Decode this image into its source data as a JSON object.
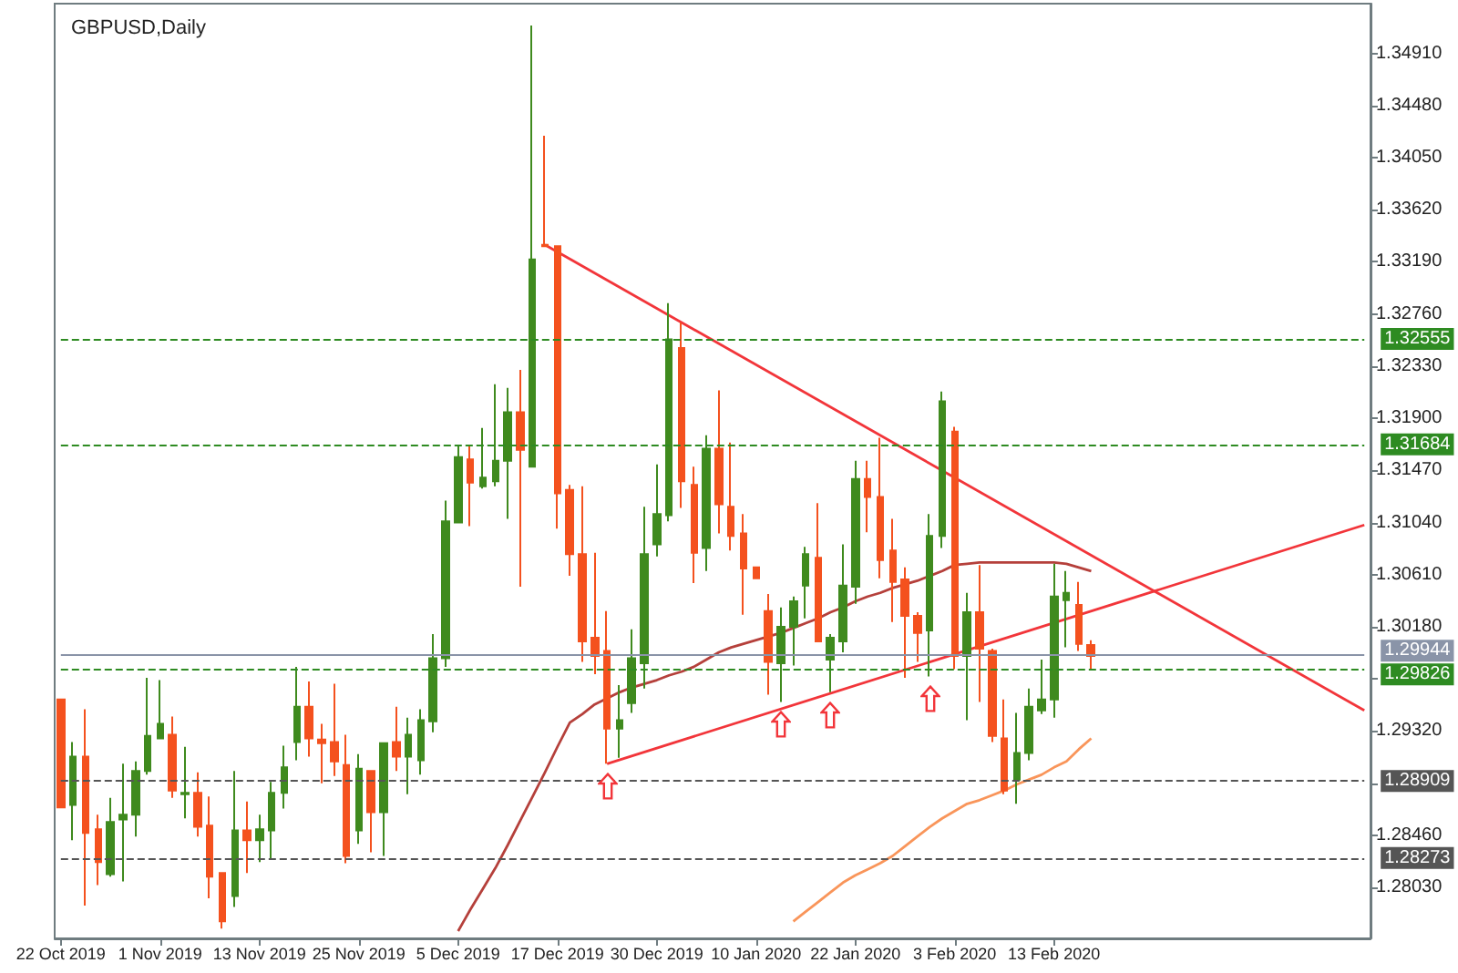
{
  "chart_data": {
    "type": "candlestick",
    "title": "GBPUSD,Daily",
    "categories": [
      "22 Oct 2019",
      null,
      null,
      null,
      null,
      null,
      null,
      null,
      "1 Nov 2019",
      null,
      null,
      null,
      null,
      null,
      null,
      null,
      "13 Nov 2019",
      null,
      null,
      null,
      null,
      null,
      null,
      null,
      "25 Nov 2019",
      null,
      null,
      null,
      null,
      null,
      null,
      null,
      "5 Dec 2019",
      null,
      null,
      null,
      null,
      null,
      null,
      null,
      "17 Dec 2019",
      null,
      null,
      null,
      null,
      null,
      null,
      null,
      "30 Dec 2019",
      null,
      null,
      null,
      null,
      null,
      null,
      null,
      "10 Jan 2020",
      null,
      null,
      null,
      null,
      null,
      null,
      null,
      "22 Jan 2020",
      null,
      null,
      null,
      null,
      null,
      null,
      null,
      "3 Feb 2020",
      null,
      null,
      null,
      null,
      null,
      null,
      null,
      "13 Feb 2020",
      null,
      null,
      null,
      null,
      null,
      null,
      null,
      null,
      null,
      null,
      null,
      null,
      null,
      null,
      null,
      null,
      null,
      null,
      null,
      null,
      null,
      null,
      null,
      null,
      null
    ],
    "colors": [
      "#f4511e",
      "#3f8a1e",
      "#f4511e",
      "#f4511e",
      "#3f8a1e",
      "#3f8a1e",
      "#3f8a1e",
      "#3f8a1e",
      "#3f8a1e",
      "#f4511e",
      "#3f8a1e",
      "#f4511e",
      "#f4511e",
      "#f4511e",
      "#3f8a1e",
      "#f4511e",
      "#3f8a1e",
      "#3f8a1e",
      "#3f8a1e",
      "#3f8a1e",
      "#f4511e",
      "#f4511e",
      "#f4511e",
      "#f4511e",
      "#3f8a1e",
      "#f4511e",
      "#3f8a1e",
      "#f4511e",
      "#3f8a1e",
      "#3f8a1e",
      "#3f8a1e",
      "#3f8a1e",
      "#3f8a1e",
      "#f4511e",
      "#3f8a1e",
      "#3f8a1e",
      "#3f8a1e",
      "#f4511e",
      "#3f8a1e",
      "#f4511e",
      "#f4511e",
      "#f4511e",
      "#f4511e",
      "#f4511e",
      "#f4511e",
      "#3f8a1e",
      "#3f8a1e",
      "#3f8a1e",
      "#3f8a1e",
      "#3f8a1e",
      "#f4511e",
      "#f4511e",
      "#3f8a1e",
      "#f4511e",
      "#f4511e",
      "#f4511e",
      "#f4511e",
      "#f4511e",
      "#3f8a1e",
      "#3f8a1e",
      "#3f8a1e",
      "#f4511e",
      "#3f8a1e",
      "#3f8a1e",
      "#3f8a1e",
      "#f4511e",
      "#f4511e",
      "#f4511e",
      "#f4511e",
      "#f4511e",
      "#3f8a1e",
      "#3f8a1e",
      "#f4511e",
      "#3f8a1e",
      "#f4511e",
      "#f4511e",
      "#f4511e",
      "#3f8a1e",
      "#3f8a1e",
      "#3f8a1e",
      "#3f8a1e",
      "#3f8a1e",
      "#f4511e",
      "#f4511e",
      null,
      null,
      null,
      null,
      null,
      null,
      null,
      null,
      null,
      null,
      null,
      null,
      null,
      null,
      null,
      null,
      null,
      null,
      null,
      null,
      null,
      null
    ],
    "ohlc": [
      [
        1.2958,
        1.2958,
        1.2869,
        1.2869
      ],
      [
        1.2871,
        1.2923,
        1.2842,
        1.2911
      ],
      [
        1.2911,
        1.295,
        1.2788,
        1.2848
      ],
      [
        1.2851,
        1.2863,
        1.2805,
        1.2824
      ],
      [
        1.2814,
        1.2877,
        1.2812,
        1.2857
      ],
      [
        1.2859,
        1.2905,
        1.2808,
        1.2863
      ],
      [
        1.2863,
        1.2907,
        1.2845,
        1.2899
      ],
      [
        1.2899,
        1.2976,
        1.2896,
        1.2928
      ],
      [
        1.2926,
        1.2974,
        1.2926,
        1.2938
      ],
      [
        1.2929,
        1.2944,
        1.2877,
        1.2883
      ],
      [
        1.288,
        1.2919,
        1.286,
        1.2881
      ],
      [
        1.2881,
        1.2898,
        1.2845,
        1.2853
      ],
      [
        1.2854,
        1.2878,
        1.2794,
        1.2812
      ],
      [
        1.2815,
        1.2815,
        1.2769,
        1.2775
      ],
      [
        1.2796,
        1.2899,
        1.2787,
        1.285
      ],
      [
        1.285,
        1.2874,
        1.2815,
        1.2842
      ],
      [
        1.2842,
        1.2863,
        1.2824,
        1.2851
      ],
      [
        1.285,
        1.289,
        1.2826,
        1.2881
      ],
      [
        1.2881,
        1.292,
        1.2868,
        1.2902
      ],
      [
        1.2923,
        1.2985,
        1.2908,
        1.2952
      ],
      [
        1.2952,
        1.2973,
        1.2911,
        1.2926
      ],
      [
        1.2925,
        1.2938,
        1.2889,
        1.2922
      ],
      [
        1.2923,
        1.2971,
        1.2895,
        1.2907
      ],
      [
        1.2904,
        1.2929,
        1.2823,
        1.2829
      ],
      [
        1.285,
        1.2913,
        1.2839,
        1.2901
      ],
      [
        1.2899,
        1.2899,
        1.2832,
        1.2865
      ],
      [
        1.2865,
        1.2922,
        1.2829,
        1.2922
      ],
      [
        1.2923,
        1.2952,
        1.2899,
        1.2911
      ],
      [
        1.2911,
        1.2943,
        1.288,
        1.2929
      ],
      [
        1.2908,
        1.295,
        1.2896,
        1.2941
      ],
      [
        1.294,
        1.3012,
        1.2931,
        1.2992
      ],
      [
        1.2992,
        1.3122,
        1.2985,
        1.3105
      ],
      [
        1.3104,
        1.3167,
        1.3104,
        1.3158
      ],
      [
        1.3156,
        1.3167,
        1.3101,
        1.3137
      ],
      [
        1.3134,
        1.3182,
        1.3132,
        1.3141
      ],
      [
        1.3138,
        1.3218,
        1.3134,
        1.3155
      ],
      [
        1.3155,
        1.3215,
        1.3107,
        1.3195
      ],
      [
        1.3195,
        1.323,
        1.3051,
        1.3164
      ],
      [
        1.315,
        1.3514,
        1.315,
        1.3321
      ],
      [
        1.3333,
        1.3423,
        1.3332,
        1.3332
      ],
      [
        1.3332,
        1.3332,
        1.3099,
        1.3128
      ],
      [
        1.3131,
        1.3135,
        1.306,
        1.3078
      ],
      [
        1.3078,
        1.3134,
        1.2989,
        1.3006
      ],
      [
        1.3009,
        1.3079,
        1.2979,
        1.2994
      ],
      [
        1.2998,
        1.3031,
        1.2905,
        1.2934
      ],
      [
        1.2934,
        1.297,
        1.291,
        1.2941
      ],
      [
        1.2955,
        1.3016,
        1.2947,
        1.2992
      ],
      [
        1.2988,
        1.3117,
        1.2967,
        1.3078
      ],
      [
        1.3086,
        1.3152,
        1.3076,
        1.3111
      ],
      [
        1.311,
        1.3285,
        1.3105,
        1.3255
      ],
      [
        1.3248,
        1.3269,
        1.3116,
        1.3138
      ],
      [
        1.3135,
        1.315,
        1.3054,
        1.3079
      ],
      [
        1.3083,
        1.3176,
        1.3064,
        1.3165
      ],
      [
        1.3165,
        1.3213,
        1.3095,
        1.3119
      ],
      [
        1.3117,
        1.317,
        1.3081,
        1.3093
      ],
      [
        1.3095,
        1.3111,
        1.3028,
        1.3066
      ],
      [
        1.3067,
        1.3067,
        1.3058,
        1.3058
      ],
      [
        1.3031,
        1.3045,
        1.2962,
        1.2989
      ],
      [
        1.2988,
        1.3034,
        1.2956,
        1.3018
      ],
      [
        1.3018,
        1.3043,
        1.2986,
        1.3039
      ],
      [
        1.3052,
        1.3084,
        1.3025,
        1.3078
      ],
      [
        1.3075,
        1.312,
        1.3006,
        1.3006
      ],
      [
        1.2991,
        1.3012,
        1.2964,
        1.3009
      ],
      [
        1.3006,
        1.3086,
        1.2997,
        1.3052
      ],
      [
        1.3051,
        1.3155,
        1.3037,
        1.314
      ],
      [
        1.314,
        1.3155,
        1.3096,
        1.3125
      ],
      [
        1.3125,
        1.3174,
        1.3058,
        1.3073
      ],
      [
        1.3081,
        1.3107,
        1.3022,
        1.3055
      ],
      [
        1.3057,
        1.3067,
        1.2976,
        1.3027
      ],
      [
        1.3027,
        1.303,
        1.2989,
        1.3013
      ],
      [
        1.3015,
        1.3111,
        1.2977,
        1.3093
      ],
      [
        1.3093,
        1.3212,
        1.3083,
        1.3204
      ],
      [
        1.3179,
        1.3183,
        1.2983,
        1.2994
      ],
      [
        1.2994,
        1.3046,
        1.2941,
        1.303
      ],
      [
        1.303,
        1.3069,
        1.2956,
        1.3
      ],
      [
        1.2998,
        1.3,
        1.2923,
        1.2928
      ],
      [
        1.2926,
        1.2958,
        1.288,
        1.2883
      ],
      [
        1.2892,
        1.2947,
        1.2872,
        1.2914
      ],
      [
        1.2914,
        1.2967,
        1.2908,
        1.2952
      ],
      [
        1.2949,
        1.2991,
        1.2946,
        1.2958
      ],
      [
        1.2958,
        1.307,
        1.2943,
        1.3043
      ],
      [
        1.304,
        1.3064,
        1.3001,
        1.3046
      ],
      [
        1.3036,
        1.3055,
        1.2998,
        1.3004
      ],
      [
        1.3003,
        1.3007,
        1.2983,
        1.2994
      ],
      null,
      null,
      null,
      null,
      null,
      null,
      null,
      null,
      null,
      null,
      null,
      null,
      null,
      null,
      null,
      null,
      null,
      null,
      null,
      null,
      null,
      null
    ],
    "series": [
      {
        "type": "line",
        "color": "#b5403b",
        "values": [
          null,
          null,
          null,
          null,
          null,
          null,
          null,
          null,
          null,
          null,
          null,
          null,
          null,
          null,
          null,
          null,
          null,
          null,
          null,
          null,
          null,
          null,
          null,
          null,
          null,
          null,
          null,
          null,
          null,
          null,
          null,
          null,
          1.2767,
          1.2785,
          1.2802,
          1.2819,
          1.2838,
          1.2858,
          1.2878,
          1.2898,
          1.2919,
          1.2939,
          1.2946,
          1.2954,
          1.2959,
          1.2964,
          1.2968,
          1.2971,
          1.2974,
          1.2978,
          1.2981,
          1.2985,
          1.2991,
          1.2997,
          1.3001,
          1.3004,
          1.3007,
          1.301,
          1.3013,
          1.3017,
          1.3021,
          1.3025,
          1.303,
          1.3034,
          1.3039,
          1.3043,
          1.3046,
          1.305,
          1.3053,
          1.3056,
          1.306,
          1.3064,
          1.3069,
          1.307,
          1.3071,
          1.3071,
          1.3071,
          1.3071,
          1.3071,
          1.3071,
          1.3071,
          1.307,
          1.3067,
          1.3064,
          null,
          null,
          null,
          null,
          null,
          null,
          null,
          null,
          null,
          null,
          null,
          null,
          null,
          null,
          null,
          null,
          null,
          null,
          null,
          null,
          null,
          null
        ]
      },
      {
        "type": "line",
        "color": "#f9955a",
        "values": [
          null,
          null,
          null,
          null,
          null,
          null,
          null,
          null,
          null,
          null,
          null,
          null,
          null,
          null,
          null,
          null,
          null,
          null,
          null,
          null,
          null,
          null,
          null,
          null,
          null,
          null,
          null,
          null,
          null,
          null,
          null,
          null,
          null,
          null,
          null,
          null,
          null,
          null,
          null,
          null,
          null,
          null,
          null,
          null,
          null,
          null,
          null,
          null,
          null,
          null,
          null,
          null,
          null,
          null,
          null,
          null,
          null,
          null,
          null,
          1.2775,
          1.2783,
          1.2791,
          1.2799,
          1.2807,
          1.2813,
          1.2818,
          1.2823,
          1.2829,
          1.2837,
          1.2845,
          1.2853,
          1.286,
          1.2866,
          1.2872,
          1.2875,
          1.2879,
          1.2883,
          1.2888,
          1.2892,
          1.2896,
          1.2902,
          1.2907,
          1.2917,
          1.2926,
          null,
          null,
          null,
          null,
          null,
          null,
          null,
          null,
          null,
          null,
          null,
          null,
          null,
          null,
          null,
          null,
          null,
          null,
          null,
          null,
          null,
          null
        ]
      },
      {
        "type": "line",
        "color": "#f2353a",
        "values": [
          null,
          null,
          null,
          null,
          null,
          null,
          null,
          null,
          null,
          null,
          null,
          null,
          null,
          null,
          null,
          null,
          null,
          null,
          null,
          null,
          null,
          null,
          null,
          null,
          null,
          null,
          null,
          null,
          null,
          null,
          null,
          null,
          null,
          null,
          null,
          null,
          null,
          null,
          null,
          1.3333,
          null,
          null,
          null,
          null,
          null,
          null,
          null,
          null,
          null,
          null,
          null,
          null,
          null,
          null,
          null,
          null,
          null,
          null,
          null,
          null,
          null,
          null,
          null,
          null,
          null,
          null,
          null,
          null,
          null,
          null,
          null,
          null,
          null,
          null,
          null,
          null,
          null,
          null,
          null,
          null,
          null,
          null,
          null,
          null,
          null,
          null,
          null,
          null,
          null,
          null,
          null,
          null,
          null,
          null,
          null,
          null,
          null,
          null,
          null,
          null,
          null,
          null,
          null,
          null,
          null,
          1.2949
        ]
      },
      {
        "type": "line",
        "color": "#f2353a",
        "values": [
          null,
          null,
          null,
          null,
          null,
          null,
          null,
          null,
          null,
          null,
          null,
          null,
          null,
          null,
          null,
          null,
          null,
          null,
          null,
          null,
          null,
          null,
          null,
          null,
          null,
          null,
          null,
          null,
          null,
          null,
          null,
          null,
          null,
          null,
          null,
          null,
          null,
          null,
          null,
          null,
          null,
          null,
          null,
          null,
          1.2905,
          null,
          null,
          null,
          null,
          null,
          null,
          null,
          null,
          null,
          null,
          null,
          null,
          null,
          null,
          null,
          null,
          null,
          null,
          null,
          null,
          null,
          null,
          null,
          null,
          null,
          null,
          null,
          null,
          null,
          null,
          null,
          null,
          null,
          null,
          null,
          null,
          null,
          null,
          null,
          null,
          null,
          null,
          null,
          null,
          null,
          null,
          null,
          null,
          null,
          null,
          null,
          null,
          null,
          null,
          null,
          null,
          null,
          null,
          null,
          null,
          1.3102
        ]
      }
    ],
    "ylim": [
      1.2761,
      1.3532
    ],
    "yticks": [
      {
        "value": 1.2803,
        "label": "1.28030"
      },
      {
        "value": 1.2846,
        "label": "1.28460"
      },
      {
        "value": 1.2889,
        "label": null
      },
      {
        "value": 1.2932,
        "label": "1.29320"
      },
      {
        "value": 1.2975,
        "label": null
      },
      {
        "value": 1.3018,
        "label": "1.30180"
      },
      {
        "value": 1.3061,
        "label": "1.30610"
      },
      {
        "value": 1.3104,
        "label": "1.31040"
      },
      {
        "value": 1.3147,
        "label": "1.31470"
      },
      {
        "value": 1.319,
        "label": "1.31900"
      },
      {
        "value": 1.3233,
        "label": "1.32330"
      },
      {
        "value": 1.3276,
        "label": "1.32760"
      },
      {
        "value": 1.3319,
        "label": "1.33190"
      },
      {
        "value": 1.3362,
        "label": "1.33620"
      },
      {
        "value": 1.3405,
        "label": "1.34050"
      },
      {
        "value": 1.3448,
        "label": "1.34480"
      },
      {
        "value": 1.3491,
        "label": "1.34910"
      }
    ],
    "ref_lines": [
      {
        "axis": "y",
        "value": 1.32555,
        "label": "1.32555",
        "color": "#2e8b22",
        "line_style": "dashed"
      },
      {
        "axis": "y",
        "value": 1.31684,
        "label": "1.31684",
        "color": "#2e8b22",
        "line_style": "dashed"
      },
      {
        "axis": "y",
        "value": 1.29944,
        "label": "1.29944",
        "color": "#8a94a8",
        "line_style": "solid"
      },
      {
        "axis": "y",
        "value": 1.29826,
        "label": "1.29826",
        "color": "#2e8b22",
        "line_style": "dashed"
      },
      {
        "axis": "y",
        "value": 1.28909,
        "label": "1.28909",
        "color": "#555555",
        "line_style": "dashed"
      },
      {
        "axis": "y",
        "value": 1.28273,
        "label": "1.28273",
        "color": "#555555",
        "line_style": "dashed"
      }
    ]
  }
}
